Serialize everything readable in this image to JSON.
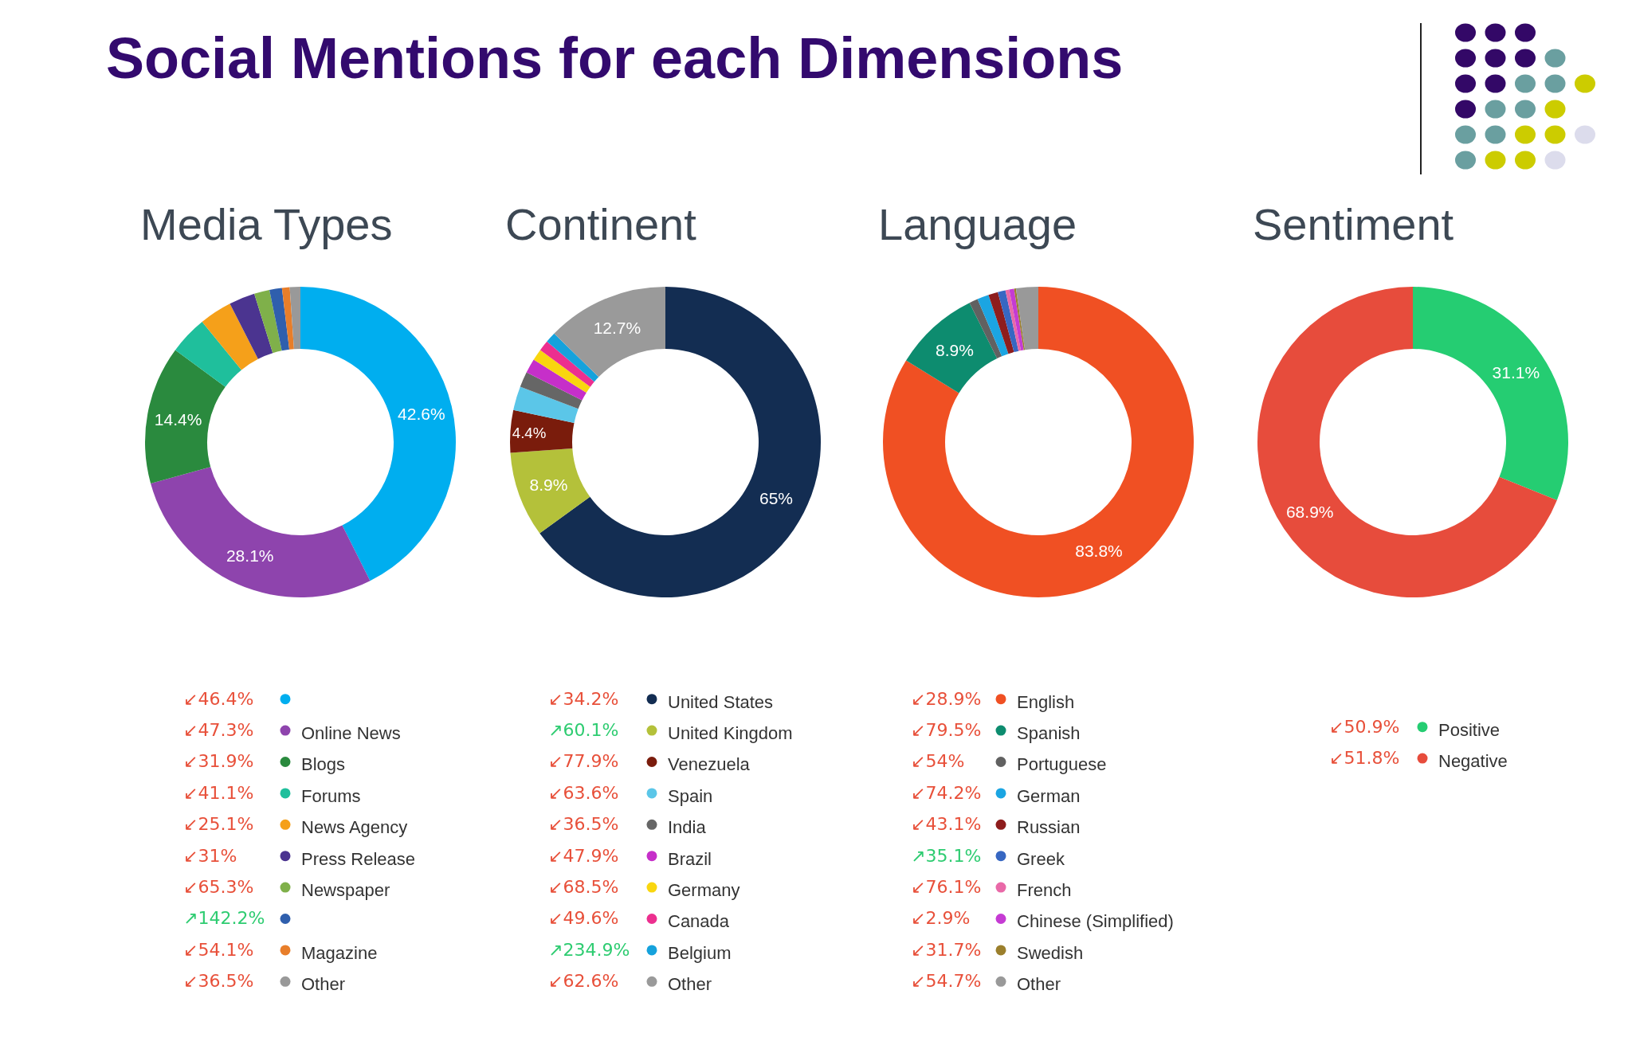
{
  "chart_data": [
    {
      "type": "other",
      "title": "Social Mentions for each Dimensions"
    },
    {
      "type": "donut",
      "title": "Media Types",
      "categories": [
        null,
        "Online News",
        "Blogs",
        "Forums",
        "News Agency",
        "Press Release",
        "Newspaper",
        null,
        "Magazine",
        "Other"
      ],
      "values": [
        42.6,
        28.1,
        14.4,
        4.0,
        3.4,
        2.7,
        1.6,
        1.3,
        0.8,
        1.1
      ],
      "colors": [
        "#00aeef",
        "#8e44ad",
        "#2a8a3e",
        "#1fbf9c",
        "#f5a01a",
        "#4b3490",
        "#7fb04a",
        "#2f5fad",
        "#e87e2a",
        "#999999"
      ],
      "value_labels": [
        "42.6%",
        "28.1%",
        "14.4%",
        null,
        null,
        null,
        null,
        null,
        null,
        null
      ],
      "annotations": [
        "↙46.4%",
        "↙47.3%",
        "↙31.9%",
        "↙41.1%",
        "↙25.1%",
        "↙31%",
        "↙65.3%",
        "↗142.2%",
        "↙54.1%",
        "↙36.5%"
      ],
      "legend": "bottom"
    },
    {
      "type": "donut",
      "title": "Continent",
      "categories": [
        "United States",
        "United Kingdom",
        "Venezuela",
        "Spain",
        "India",
        "Brazil",
        "Germany",
        "Canada",
        "Belgium",
        "Other"
      ],
      "values": [
        65,
        8.9,
        4.4,
        2.5,
        1.6,
        1.5,
        1.2,
        1.1,
        1.1,
        12.7
      ],
      "colors": [
        "#132d52",
        "#b4c13a",
        "#7a1c0c",
        "#5bc6e8",
        "#666666",
        "#c62fc9",
        "#f9d60f",
        "#ec2f8f",
        "#15a2dc",
        "#9a9a9a"
      ],
      "value_labels": [
        "65%",
        "8.9%",
        "4.4%",
        null,
        null,
        null,
        null,
        null,
        null,
        "12.7%"
      ],
      "annotations": [
        "↙34.2%",
        "↗60.1%",
        "↙77.9%",
        "↙63.6%",
        "↙36.5%",
        "↙47.9%",
        "↙68.5%",
        "↙49.6%",
        "↗234.9%",
        "↙62.6%"
      ],
      "legend": "bottom"
    },
    {
      "type": "donut",
      "title": "Language",
      "categories": [
        "English",
        "Spanish",
        "Portuguese",
        "German",
        "Russian",
        "Greek",
        "French",
        "Chinese (Simplified)",
        "Swedish",
        "Other"
      ],
      "values": [
        83.8,
        8.9,
        0.9,
        1.2,
        1.0,
        0.8,
        0.4,
        0.5,
        0.2,
        2.3
      ],
      "colors": [
        "#f05023",
        "#0d8c6f",
        "#616161",
        "#1ba5e2",
        "#8e1d1d",
        "#3767c2",
        "#e969a8",
        "#c53bd3",
        "#9b7f2c",
        "#999999"
      ],
      "value_labels": [
        "83.8%",
        "8.9%",
        null,
        null,
        null,
        null,
        null,
        null,
        null,
        null
      ],
      "annotations": [
        "↙28.9%",
        "↙79.5%",
        "↙54%",
        "↙74.2%",
        "↙43.1%",
        "↗35.1%",
        "↙76.1%",
        "↙2.9%",
        "↙31.7%",
        "↙54.7%"
      ],
      "legend": "bottom"
    },
    {
      "type": "donut",
      "title": "Sentiment",
      "categories": [
        "Positive",
        "Negative"
      ],
      "values": [
        31.1,
        68.9
      ],
      "colors": [
        "#25cd72",
        "#e74c3c"
      ],
      "value_labels": [
        "31.1%",
        "68.9%"
      ],
      "annotations": [
        "↙50.9%",
        "↙51.8%"
      ],
      "legend": "bottom"
    }
  ]
}
